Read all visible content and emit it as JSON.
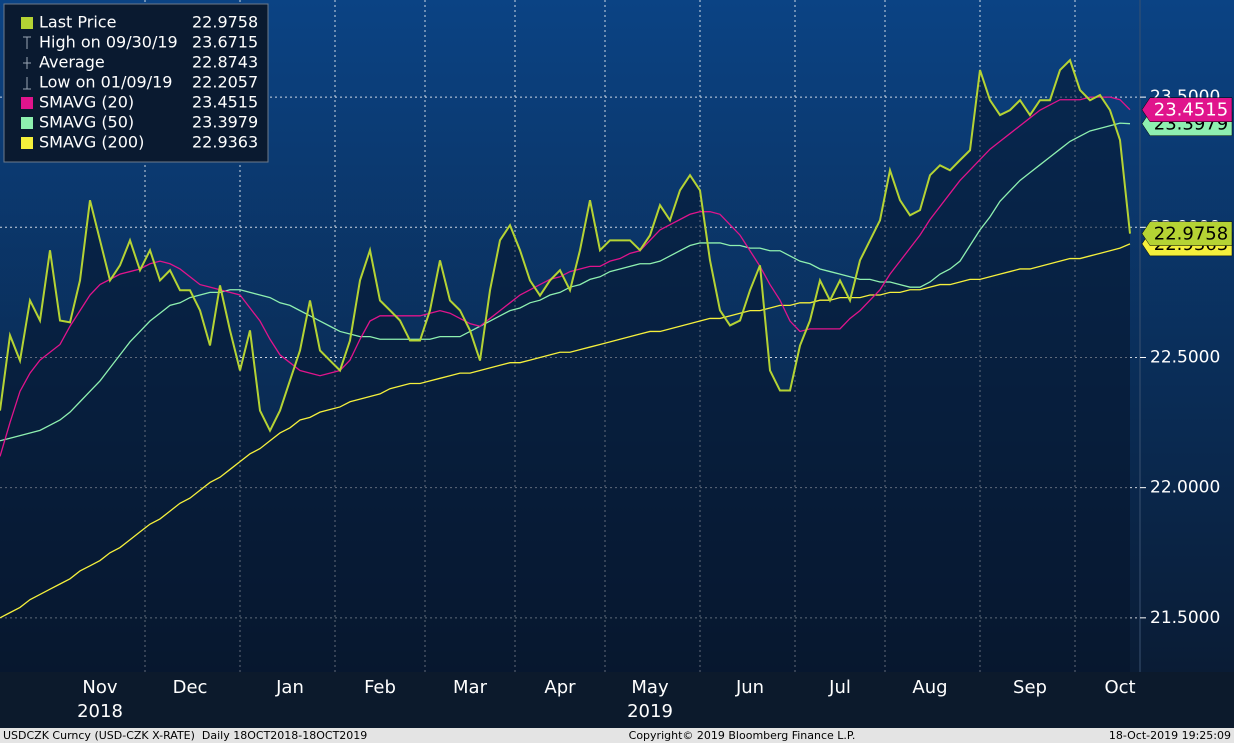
{
  "chart_data": {
    "type": "line",
    "legend": "upper left",
    "grid": true,
    "ylim": [
      21.292,
      23.873
    ],
    "yticks": [
      {
        "value": 21.5,
        "label": "21.5000"
      },
      {
        "value": 22,
        "label": "22.0000"
      },
      {
        "value": 22.5,
        "label": "22.5000"
      },
      {
        "value": 23,
        "label": "23.0000"
      },
      {
        "value": 23.5,
        "label": "23.5000"
      }
    ],
    "categories": [
      null,
      null,
      null,
      null,
      null,
      null,
      null,
      null,
      null,
      null,
      "Nov",
      null,
      null,
      null,
      null,
      null,
      null,
      null,
      null,
      "Dec",
      null,
      null,
      null,
      null,
      null,
      null,
      null,
      null,
      null,
      "Jan",
      null,
      null,
      null,
      null,
      null,
      null,
      null,
      null,
      "Feb",
      null,
      null,
      null,
      null,
      null,
      null,
      null,
      null,
      "Mar",
      null,
      null,
      null,
      null,
      null,
      null,
      null,
      null,
      "Apr",
      null,
      null,
      null,
      null,
      null,
      null,
      null,
      null,
      "May",
      null,
      null,
      null,
      null,
      null,
      null,
      null,
      null,
      null,
      "Jun",
      null,
      null,
      null,
      null,
      null,
      null,
      null,
      null,
      "Jul",
      null,
      null,
      null,
      null,
      null,
      null,
      null,
      null,
      "Aug",
      null,
      null,
      null,
      null,
      null,
      null,
      null,
      null,
      null,
      "Sep",
      null,
      null,
      null,
      null,
      null,
      null,
      null,
      null,
      "Oct",
      null
    ],
    "years": [
      {
        "label": "2018",
        "category": "Nov"
      },
      {
        "label": "2019",
        "category": "May"
      }
    ],
    "series": [
      {
        "name": "Last Price",
        "color": "#b5d334",
        "values": [
          22.296,
          22.585,
          22.488,
          22.719,
          22.642,
          22.912,
          22.642,
          22.635,
          22.796,
          23.104,
          22.95,
          22.796,
          22.854,
          22.95,
          22.835,
          22.912,
          22.796,
          22.835,
          22.758,
          22.758,
          22.681,
          22.546,
          22.777,
          22.604,
          22.45,
          22.604,
          22.296,
          22.219,
          22.296,
          22.412,
          22.527,
          22.719,
          22.527,
          22.488,
          22.45,
          22.565,
          22.796,
          22.912,
          22.719,
          22.681,
          22.642,
          22.565,
          22.565,
          22.681,
          22.873,
          22.719,
          22.681,
          22.604,
          22.488,
          22.758,
          22.95,
          23.008,
          22.912,
          22.796,
          22.738,
          22.796,
          22.835,
          22.758,
          22.912,
          23.104,
          22.912,
          22.95,
          22.95,
          22.95,
          22.912,
          22.969,
          23.085,
          23.027,
          23.142,
          23.2,
          23.142,
          22.873,
          22.681,
          22.623,
          22.642,
          22.758,
          22.854,
          22.45,
          22.373,
          22.373,
          22.546,
          22.642,
          22.796,
          22.719,
          22.796,
          22.719,
          22.873,
          22.95,
          23.027,
          23.219,
          23.104,
          23.046,
          23.066,
          23.2,
          23.238,
          23.219,
          23.258,
          23.296,
          23.604,
          23.488,
          23.431,
          23.45,
          23.488,
          23.431,
          23.488,
          23.488,
          23.604,
          23.642,
          23.527,
          23.488,
          23.508,
          23.45,
          23.335,
          22.9758
        ]
      },
      {
        "name": "SMAVG (20)",
        "color": "#e0148c",
        "values": [
          22.12,
          22.25,
          22.37,
          22.44,
          22.49,
          22.52,
          22.55,
          22.62,
          22.68,
          22.74,
          22.78,
          22.8,
          22.82,
          22.83,
          22.84,
          22.86,
          22.87,
          22.86,
          22.84,
          22.81,
          22.78,
          22.77,
          22.76,
          22.75,
          22.74,
          22.69,
          22.64,
          22.57,
          22.51,
          22.48,
          22.45,
          22.44,
          22.43,
          22.44,
          22.45,
          22.49,
          22.57,
          22.64,
          22.66,
          22.66,
          22.66,
          22.66,
          22.66,
          22.67,
          22.68,
          22.67,
          22.65,
          22.63,
          22.62,
          22.65,
          22.68,
          22.71,
          22.74,
          22.76,
          22.78,
          22.8,
          22.81,
          22.83,
          22.84,
          22.85,
          22.85,
          22.87,
          22.88,
          22.9,
          22.91,
          22.95,
          22.99,
          23.01,
          23.03,
          23.05,
          23.06,
          23.06,
          23.05,
          23.01,
          22.97,
          22.91,
          22.85,
          22.78,
          22.72,
          22.64,
          22.6,
          22.61,
          22.61,
          22.61,
          22.61,
          22.65,
          22.68,
          22.72,
          22.76,
          22.82,
          22.87,
          22.92,
          22.97,
          23.03,
          23.08,
          23.13,
          23.18,
          23.22,
          23.26,
          23.3,
          23.33,
          23.36,
          23.39,
          23.42,
          23.45,
          23.47,
          23.49,
          23.49,
          23.49,
          23.5,
          23.5,
          23.5,
          23.49,
          23.4515
        ]
      },
      {
        "name": "SMAVG (50)",
        "color": "#8ef0b0",
        "values": [
          22.18,
          22.19,
          22.2,
          22.21,
          22.22,
          22.24,
          22.26,
          22.29,
          22.33,
          22.37,
          22.41,
          22.46,
          22.51,
          22.56,
          22.6,
          22.64,
          22.67,
          22.7,
          22.71,
          22.73,
          22.74,
          22.75,
          22.75,
          22.76,
          22.76,
          22.75,
          22.74,
          22.73,
          22.71,
          22.7,
          22.68,
          22.66,
          22.64,
          22.62,
          22.6,
          22.59,
          22.58,
          22.58,
          22.57,
          22.57,
          22.57,
          22.57,
          22.57,
          22.57,
          22.58,
          22.58,
          22.58,
          22.6,
          22.62,
          22.64,
          22.66,
          22.68,
          22.69,
          22.71,
          22.72,
          22.74,
          22.75,
          22.77,
          22.78,
          22.8,
          22.81,
          22.83,
          22.84,
          22.85,
          22.86,
          22.86,
          22.87,
          22.89,
          22.91,
          22.93,
          22.94,
          22.94,
          22.94,
          22.93,
          22.93,
          22.92,
          22.92,
          22.91,
          22.91,
          22.89,
          22.87,
          22.86,
          22.84,
          22.83,
          22.82,
          22.81,
          22.8,
          22.8,
          22.79,
          22.79,
          22.78,
          22.77,
          22.77,
          22.79,
          22.82,
          22.84,
          22.87,
          22.93,
          22.99,
          23.04,
          23.1,
          23.14,
          23.18,
          23.21,
          23.24,
          23.27,
          23.3,
          23.33,
          23.35,
          23.37,
          23.38,
          23.39,
          23.4,
          23.3979
        ]
      },
      {
        "name": "SMAVG (200)",
        "color": "#f5f03c",
        "values": [
          21.5,
          21.52,
          21.54,
          21.57,
          21.59,
          21.61,
          21.63,
          21.65,
          21.68,
          21.7,
          21.72,
          21.75,
          21.77,
          21.8,
          21.83,
          21.86,
          21.88,
          21.91,
          21.94,
          21.96,
          21.99,
          22.02,
          22.04,
          22.07,
          22.1,
          22.13,
          22.15,
          22.18,
          22.21,
          22.23,
          22.26,
          22.27,
          22.29,
          22.3,
          22.31,
          22.33,
          22.34,
          22.35,
          22.36,
          22.38,
          22.39,
          22.4,
          22.4,
          22.41,
          22.42,
          22.43,
          22.44,
          22.44,
          22.45,
          22.46,
          22.47,
          22.48,
          22.48,
          22.49,
          22.5,
          22.51,
          22.52,
          22.52,
          22.53,
          22.54,
          22.55,
          22.56,
          22.57,
          22.58,
          22.59,
          22.6,
          22.6,
          22.61,
          22.62,
          22.63,
          22.64,
          22.65,
          22.65,
          22.66,
          22.67,
          22.68,
          22.68,
          22.69,
          22.7,
          22.7,
          22.71,
          22.71,
          22.72,
          22.72,
          22.73,
          22.73,
          22.73,
          22.74,
          22.74,
          22.75,
          22.75,
          22.76,
          22.76,
          22.77,
          22.78,
          22.78,
          22.79,
          22.8,
          22.8,
          22.81,
          22.82,
          22.83,
          22.84,
          22.84,
          22.85,
          22.86,
          22.87,
          22.88,
          22.88,
          22.89,
          22.9,
          22.91,
          22.92,
          22.9363
        ]
      }
    ],
    "stats": [
      {
        "label": "High on 09/30/19",
        "value": 23.6715
      },
      {
        "label": "Average",
        "value": 22.8743
      },
      {
        "label": "Low on 01/09/19",
        "value": 22.2057
      }
    ]
  },
  "footer": {
    "left": "USDCZK Curncy (USD-CZK X-RATE)  Daily 18OCT2018-18OCT2019",
    "center": "Copyright© 2019 Bloomberg Finance L.P.",
    "right": "18-Oct-2019 19:25:09"
  }
}
